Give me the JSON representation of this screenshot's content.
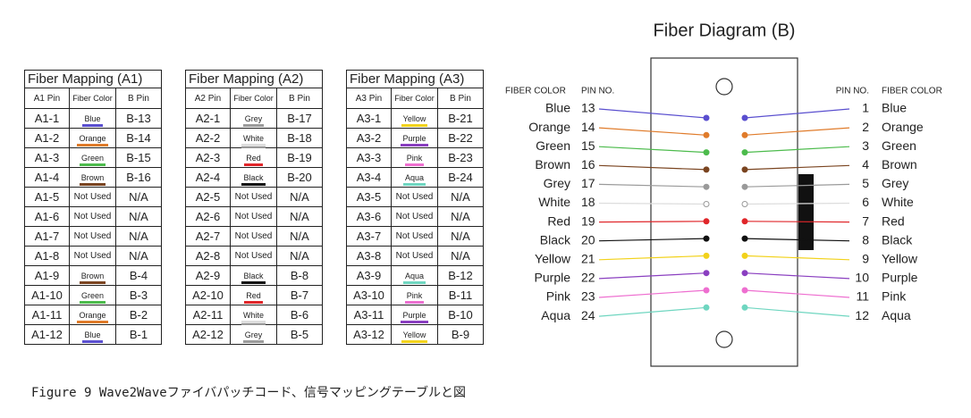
{
  "tables": [
    {
      "title": "Fiber Mapping (A1)",
      "headers": [
        "A1 Pin",
        "Fiber Color",
        "B Pin"
      ],
      "rows": [
        [
          "A1-1",
          "Blue",
          "B-13"
        ],
        [
          "A1-2",
          "Orange",
          "B-14"
        ],
        [
          "A1-3",
          "Green",
          "B-15"
        ],
        [
          "A1-4",
          "Brown",
          "B-16"
        ],
        [
          "A1-5",
          "Not Used",
          "N/A"
        ],
        [
          "A1-6",
          "Not Used",
          "N/A"
        ],
        [
          "A1-7",
          "Not Used",
          "N/A"
        ],
        [
          "A1-8",
          "Not Used",
          "N/A"
        ],
        [
          "A1-9",
          "Brown",
          "B-4"
        ],
        [
          "A1-10",
          "Green",
          "B-3"
        ],
        [
          "A1-11",
          "Orange",
          "B-2"
        ],
        [
          "A1-12",
          "Blue",
          "B-1"
        ]
      ]
    },
    {
      "title": "Fiber Mapping (A2)",
      "headers": [
        "A2 Pin",
        "Fiber Color",
        "B Pin"
      ],
      "rows": [
        [
          "A2-1",
          "Grey",
          "B-17"
        ],
        [
          "A2-2",
          "White",
          "B-18"
        ],
        [
          "A2-3",
          "Red",
          "B-19"
        ],
        [
          "A2-4",
          "Black",
          "B-20"
        ],
        [
          "A2-5",
          "Not Used",
          "N/A"
        ],
        [
          "A2-6",
          "Not Used",
          "N/A"
        ],
        [
          "A2-7",
          "Not Used",
          "N/A"
        ],
        [
          "A2-8",
          "Not Used",
          "N/A"
        ],
        [
          "A2-9",
          "Black",
          "B-8"
        ],
        [
          "A2-10",
          "Red",
          "B-7"
        ],
        [
          "A2-11",
          "White",
          "B-6"
        ],
        [
          "A2-12",
          "Grey",
          "B-5"
        ]
      ]
    },
    {
      "title": "Fiber Mapping (A3)",
      "headers": [
        "A3 Pin",
        "Fiber Color",
        "B Pin"
      ],
      "rows": [
        [
          "A3-1",
          "Yellow",
          "B-21"
        ],
        [
          "A3-2",
          "Purple",
          "B-22"
        ],
        [
          "A3-3",
          "Pink",
          "B-23"
        ],
        [
          "A3-4",
          "Aqua",
          "B-24"
        ],
        [
          "A3-5",
          "Not Used",
          "N/A"
        ],
        [
          "A3-6",
          "Not Used",
          "N/A"
        ],
        [
          "A3-7",
          "Not Used",
          "N/A"
        ],
        [
          "A3-8",
          "Not Used",
          "N/A"
        ],
        [
          "A3-9",
          "Aqua",
          "B-12"
        ],
        [
          "A3-10",
          "Pink",
          "B-11"
        ],
        [
          "A3-11",
          "Purple",
          "B-10"
        ],
        [
          "A3-12",
          "Yellow",
          "B-9"
        ]
      ]
    }
  ],
  "swatches": {
    "Blue": "#5a4fcf",
    "Orange": "#e07b2a",
    "Green": "#4cbb4c",
    "Brown": "#7a4420",
    "Grey": "#9a9a9a",
    "White": "#dddddd",
    "Red": "#e0262a",
    "Black": "#111111",
    "Yellow": "#f2d21b",
    "Purple": "#8a3fc0",
    "Pink": "#ee6fd0",
    "Aqua": "#6fd6c0"
  },
  "diagram": {
    "title": "Fiber Diagram (B)",
    "left_headers": [
      "FIBER COLOR",
      "PIN NO."
    ],
    "right_headers": [
      "PIN NO.",
      "FIBER COLOR"
    ],
    "left": [
      [
        "Blue",
        "13"
      ],
      [
        "Orange",
        "14"
      ],
      [
        "Green",
        "15"
      ],
      [
        "Brown",
        "16"
      ],
      [
        "Grey",
        "17"
      ],
      [
        "White",
        "18"
      ],
      [
        "Red",
        "19"
      ],
      [
        "Black",
        "20"
      ],
      [
        "Yellow",
        "21"
      ],
      [
        "Purple",
        "22"
      ],
      [
        "Pink",
        "23"
      ],
      [
        "Aqua",
        "24"
      ]
    ],
    "right": [
      [
        "1",
        "Blue"
      ],
      [
        "2",
        "Orange"
      ],
      [
        "3",
        "Green"
      ],
      [
        "4",
        "Brown"
      ],
      [
        "5",
        "Grey"
      ],
      [
        "6",
        "White"
      ],
      [
        "7",
        "Red"
      ],
      [
        "8",
        "Black"
      ],
      [
        "9",
        "Yellow"
      ],
      [
        "10",
        "Purple"
      ],
      [
        "11",
        "Pink"
      ],
      [
        "12",
        "Aqua"
      ]
    ]
  },
  "caption": "Figure 9  Wave2Waveファイバパッチコード、信号マッピングテーブルと図"
}
